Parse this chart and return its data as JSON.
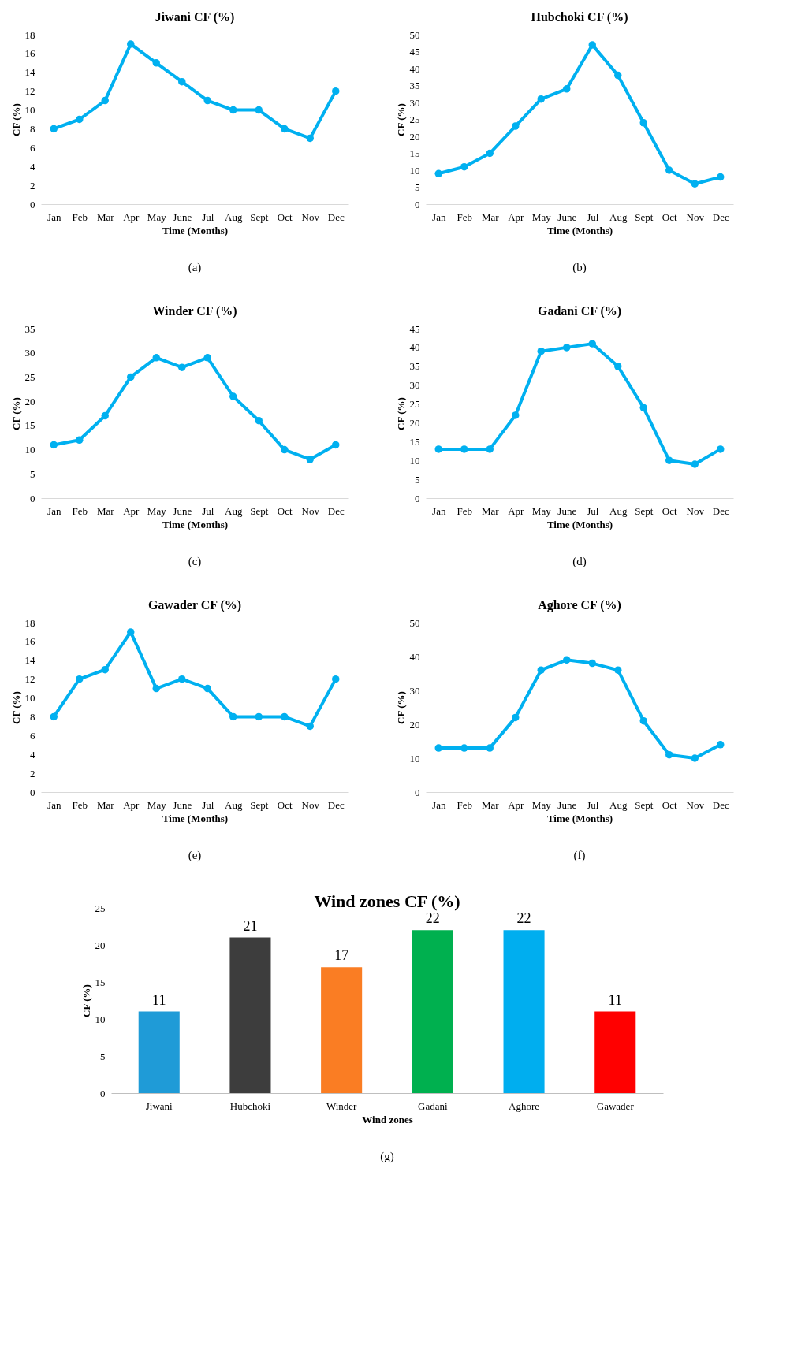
{
  "chart_data": [
    {
      "type": "line",
      "title": "Jiwani CF (%)",
      "xlabel": "Time (Months)",
      "ylabel": "CF (%)",
      "categories": [
        "Jan",
        "Feb",
        "Mar",
        "Apr",
        "May",
        "June",
        "Jul",
        "Aug",
        "Sept",
        "Oct",
        "Nov",
        "Dec"
      ],
      "series": [
        {
          "color": "#00b0f0",
          "values": [
            8,
            9,
            11,
            17,
            15,
            13,
            11,
            10,
            10,
            8,
            7,
            12
          ]
        }
      ],
      "ylim": [
        0,
        18
      ],
      "yticks": [
        0,
        2,
        4,
        6,
        8,
        10,
        12,
        14,
        16,
        18
      ],
      "marker": "circle",
      "annotations": [
        "(a)"
      ]
    },
    {
      "type": "line",
      "title": "Hubchoki CF (%)",
      "xlabel": "Time (Months)",
      "ylabel": "CF (%)",
      "categories": [
        "Jan",
        "Feb",
        "Mar",
        "Apr",
        "May",
        "June",
        "Jul",
        "Aug",
        "Sept",
        "Oct",
        "Nov",
        "Dec"
      ],
      "series": [
        {
          "color": "#00b0f0",
          "values": [
            9,
            11,
            15,
            23,
            31,
            34,
            47,
            38,
            24,
            10,
            6,
            8
          ]
        }
      ],
      "ylim": [
        0,
        50
      ],
      "yticks": [
        0,
        5,
        10,
        15,
        20,
        25,
        30,
        35,
        40,
        45,
        50
      ],
      "marker": "circle",
      "annotations": [
        "(b)"
      ]
    },
    {
      "type": "line",
      "title": "Winder CF (%)",
      "xlabel": "Time (Months)",
      "ylabel": "CF (%)",
      "categories": [
        "Jan",
        "Feb",
        "Mar",
        "Apr",
        "May",
        "June",
        "Jul",
        "Aug",
        "Sept",
        "Oct",
        "Nov",
        "Dec"
      ],
      "series": [
        {
          "color": "#00b0f0",
          "values": [
            11,
            12,
            17,
            25,
            29,
            27,
            29,
            21,
            16,
            10,
            8,
            11
          ]
        }
      ],
      "ylim": [
        0,
        35
      ],
      "yticks": [
        0,
        5,
        10,
        15,
        20,
        25,
        30,
        35
      ],
      "marker": "circle",
      "annotations": [
        "(c)"
      ]
    },
    {
      "type": "line",
      "title": "Gadani CF (%)",
      "xlabel": "Time (Months)",
      "ylabel": "CF (%)",
      "categories": [
        "Jan",
        "Feb",
        "Mar",
        "Apr",
        "May",
        "June",
        "Jul",
        "Aug",
        "Sept",
        "Oct",
        "Nov",
        "Dec"
      ],
      "series": [
        {
          "color": "#00b0f0",
          "values": [
            13,
            13,
            13,
            22,
            39,
            40,
            41,
            35,
            24,
            10,
            9,
            13
          ]
        }
      ],
      "ylim": [
        0,
        45
      ],
      "yticks": [
        0,
        5,
        10,
        15,
        20,
        25,
        30,
        35,
        40,
        45
      ],
      "marker": "circle",
      "annotations": [
        "(d)"
      ]
    },
    {
      "type": "line",
      "title": "Gawader CF (%)",
      "xlabel": "Time (Months)",
      "ylabel": "CF (%)",
      "categories": [
        "Jan",
        "Feb",
        "Mar",
        "Apr",
        "May",
        "June",
        "Jul",
        "Aug",
        "Sept",
        "Oct",
        "Nov",
        "Dec"
      ],
      "series": [
        {
          "color": "#00b0f0",
          "values": [
            8,
            12,
            13,
            17,
            11,
            12,
            11,
            8,
            8,
            8,
            7,
            12
          ]
        }
      ],
      "ylim": [
        0,
        18
      ],
      "yticks": [
        0,
        2,
        4,
        6,
        8,
        10,
        12,
        14,
        16,
        18
      ],
      "marker": "circle",
      "annotations": [
        "(e)"
      ]
    },
    {
      "type": "line",
      "title": "Aghore  CF (%)",
      "xlabel": "Time (Months)",
      "ylabel": "CF (%)",
      "categories": [
        "Jan",
        "Feb",
        "Mar",
        "Apr",
        "May",
        "June",
        "Jul",
        "Aug",
        "Sept",
        "Oct",
        "Nov",
        "Dec"
      ],
      "series": [
        {
          "color": "#00b0f0",
          "values": [
            13,
            13,
            13,
            22,
            36,
            39,
            38,
            36,
            21,
            11,
            10,
            14
          ]
        }
      ],
      "ylim": [
        0,
        50
      ],
      "yticks": [
        0,
        10,
        20,
        30,
        40,
        50
      ],
      "marker": "circle",
      "annotations": [
        "(f)"
      ]
    },
    {
      "type": "bar",
      "title": "Wind zones CF (%)",
      "xlabel": "Wind zones",
      "ylabel": "CF (%)",
      "categories": [
        "Jiwani",
        "Hubchoki",
        "Winder",
        "Gadani",
        "Aghore",
        "Gawader"
      ],
      "values": [
        11,
        21,
        17,
        22,
        22,
        11
      ],
      "colors": [
        "#1f9bd7",
        "#3d3d3d",
        "#fa7d23",
        "#00b04f",
        "#00aeef",
        "#ff0000"
      ],
      "ylim": [
        0,
        25
      ],
      "yticks": [
        0,
        5,
        10,
        15,
        20,
        25
      ],
      "data_labels": true,
      "annotations": [
        "(g)"
      ]
    }
  ]
}
